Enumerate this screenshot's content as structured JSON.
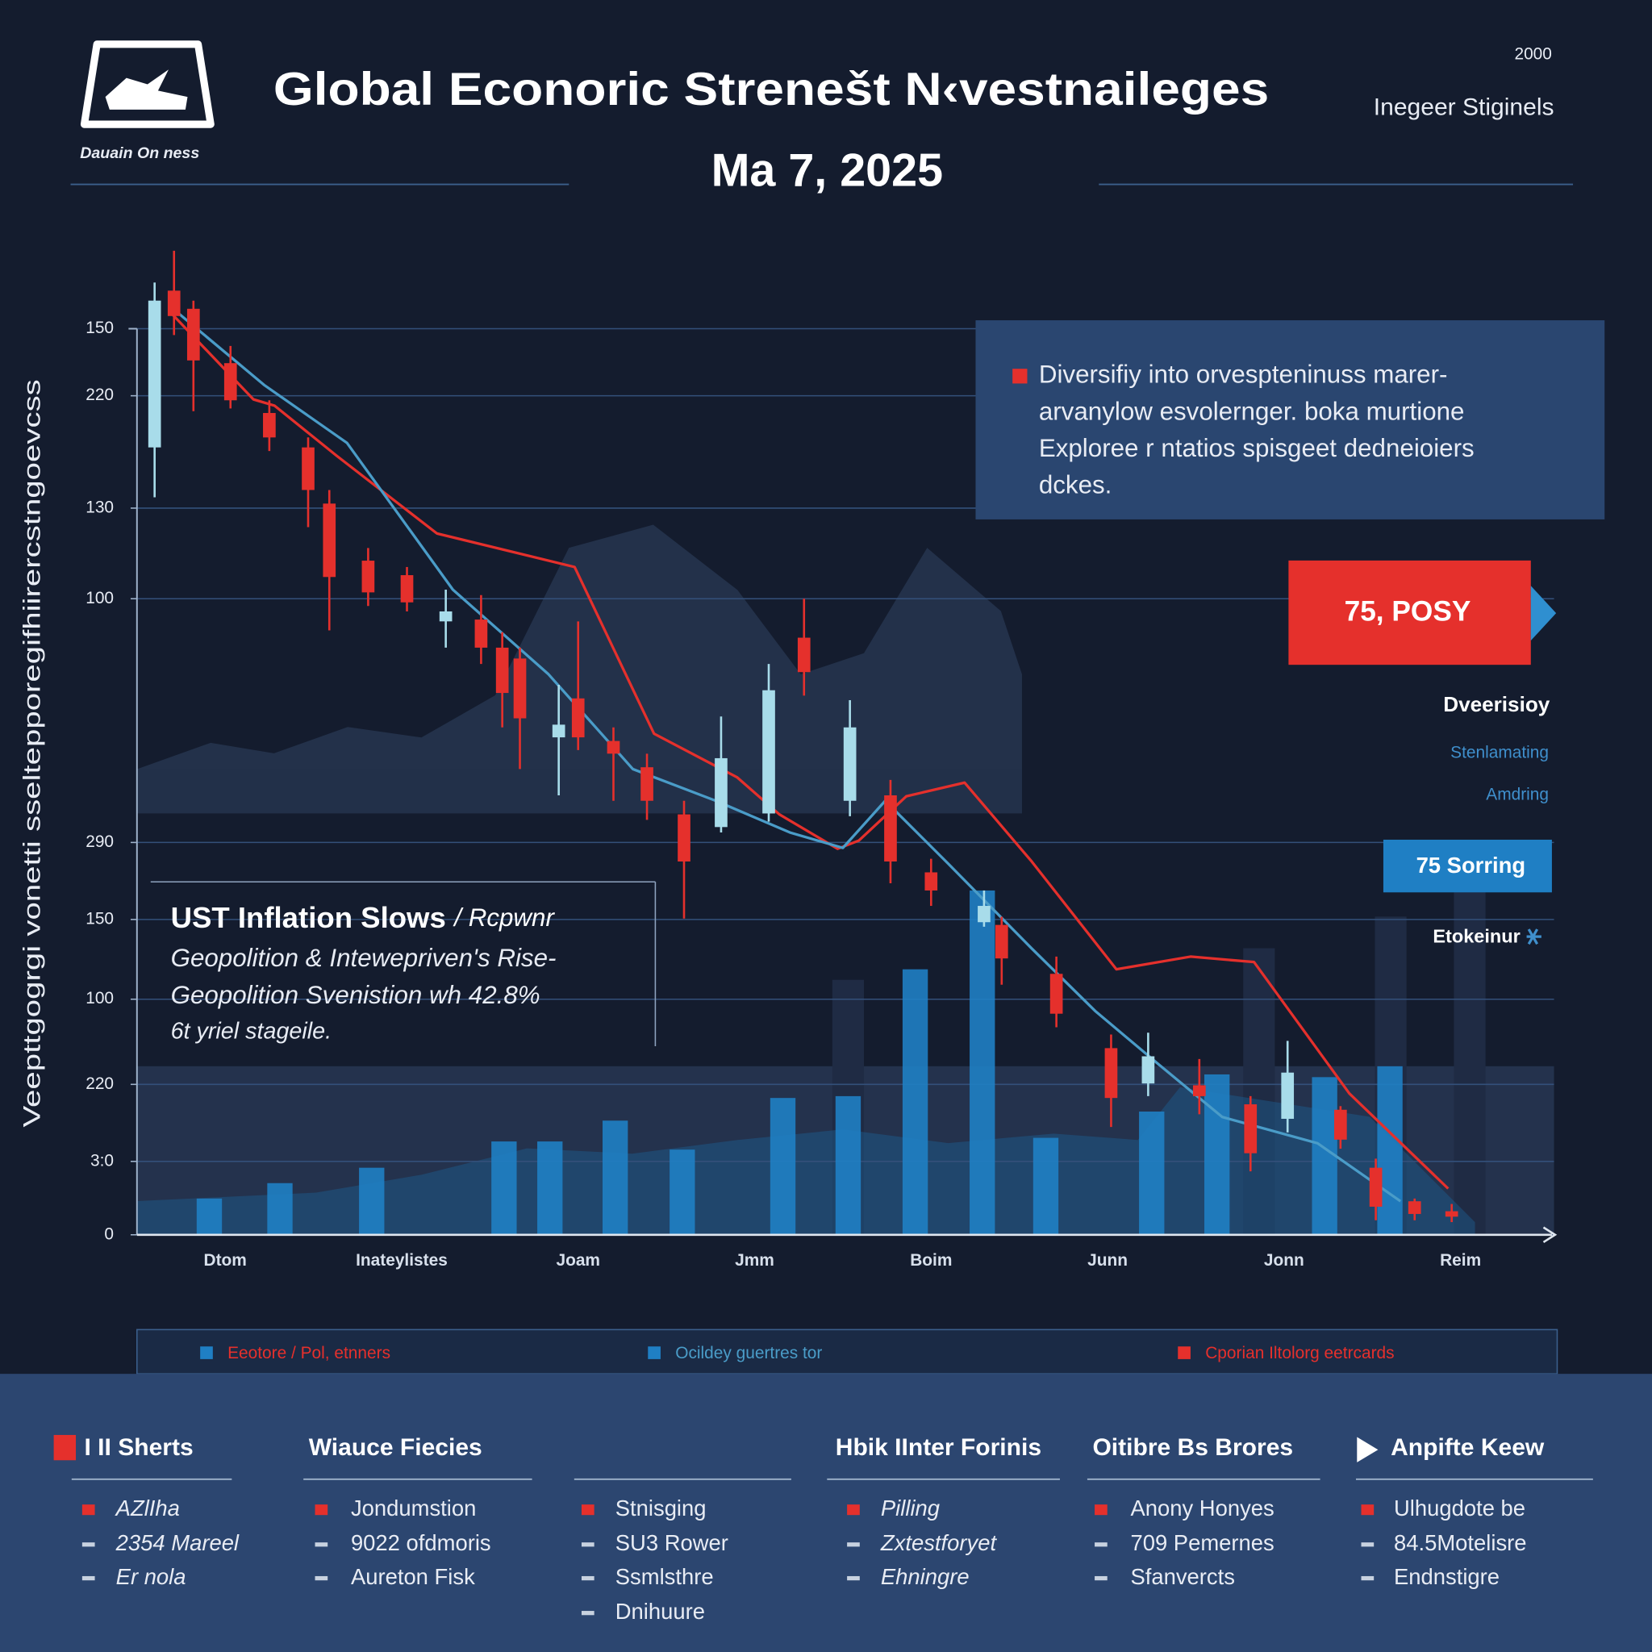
{
  "header": {
    "logo_text": "Dauain On ness",
    "title": "Global Econoric Strenešt N‹vestnaileges",
    "date": "Ma 7, 2025",
    "top_right_number": "2000",
    "top_right_label": "Inegeer Stiginels"
  },
  "chart_data": {
    "type": "candlestick",
    "y_label": "Veepttgogrgi vonetti sseltepporegifhiirercstngoevcss",
    "categories": [
      "Dtom",
      "Inateylistes",
      "Joam",
      "Jmm",
      "Boim",
      "Junn",
      "Jonn",
      "Reim"
    ],
    "xlim": [
      0,
      8
    ],
    "ylim": [
      0,
      110
    ],
    "yticks": [
      {
        "value": 100,
        "label": "150"
      },
      {
        "value": 92.6,
        "label": "220"
      },
      {
        "value": 80.2,
        "label": "130"
      },
      {
        "value": 70.2,
        "label": "100"
      },
      {
        "value": 43.3,
        "label": "290"
      },
      {
        "value": 34.8,
        "label": "150"
      },
      {
        "value": 26.0,
        "label": "100"
      },
      {
        "value": 16.6,
        "label": "220"
      },
      {
        "value": 8.1,
        "label": "3:0"
      },
      0
    ],
    "grid": true,
    "candles": {
      "up_color": "#a8dcea",
      "down_color": "#e5302c",
      "x": [
        0.1,
        0.21,
        0.32,
        0.53,
        0.75,
        0.97,
        1.09,
        1.31,
        1.53,
        1.75,
        1.95,
        2.07,
        2.17,
        2.39,
        2.5,
        2.7,
        2.89,
        3.1,
        3.31,
        3.58,
        3.78,
        4.04,
        4.27,
        4.5,
        4.8,
        4.9,
        5.21,
        5.52,
        5.73,
        6.02,
        6.31,
        6.52,
        6.82,
        7.02,
        7.24,
        7.45
      ],
      "open": [
        86.9,
        104.2,
        102.2,
        96.2,
        90.7,
        86.9,
        80.7,
        74.4,
        72.8,
        67.7,
        67.9,
        64.8,
        63.6,
        54.9,
        59.2,
        54.5,
        51.6,
        46.4,
        45.0,
        46.5,
        65.9,
        47.9,
        48.5,
        40.0,
        34.5,
        34.2,
        28.8,
        20.6,
        16.7,
        16.5,
        14.4,
        12.8,
        13.8,
        7.4,
        3.7,
        2.6
      ],
      "high": [
        105.1,
        108.6,
        103.1,
        98.1,
        92.1,
        88.0,
        82.2,
        75.8,
        73.7,
        71.2,
        70.6,
        66.5,
        64.8,
        60.7,
        67.7,
        56.0,
        53.1,
        47.9,
        57.2,
        63.0,
        70.2,
        59.0,
        50.2,
        41.5,
        38.0,
        35.1,
        30.7,
        22.1,
        22.3,
        19.4,
        15.3,
        21.4,
        14.2,
        8.4,
        4.0,
        3.4
      ],
      "low": [
        81.4,
        99.3,
        90.9,
        91.2,
        86.5,
        78.1,
        66.7,
        69.4,
        68.8,
        64.8,
        63.0,
        56.0,
        51.4,
        48.5,
        53.5,
        47.9,
        45.8,
        34.9,
        44.4,
        45.6,
        59.5,
        46.2,
        38.8,
        36.3,
        34.0,
        27.6,
        22.9,
        11.9,
        15.3,
        13.3,
        7.0,
        11.3,
        9.5,
        1.6,
        1.6,
        1.4
      ],
      "close": [
        103.1,
        101.4,
        96.5,
        92.1,
        88.0,
        82.2,
        72.6,
        70.9,
        69.8,
        68.8,
        64.8,
        59.8,
        57.0,
        56.3,
        54.9,
        53.1,
        47.9,
        41.2,
        52.6,
        60.1,
        62.1,
        56.0,
        41.2,
        38.0,
        36.3,
        30.5,
        24.4,
        15.1,
        19.7,
        15.3,
        9.0,
        17.9,
        10.5,
        3.1,
        2.3,
        2.0
      ]
    },
    "lines": [
      {
        "color": "#e5302c",
        "x": [
          0.18,
          0.66,
          0.78,
          1.13,
          1.7,
          2.48,
          2.93,
          3.4,
          3.64,
          3.97,
          4.09,
          4.36,
          4.69,
          5.07,
          5.55,
          5.97,
          6.33,
          6.87,
          7.43
        ],
        "values": [
          102.0,
          92.2,
          91.5,
          86.0,
          77.4,
          73.7,
          55.3,
          50.5,
          46.4,
          42.6,
          43.5,
          48.4,
          49.9,
          41.2,
          29.3,
          30.7,
          30.1,
          15.6,
          5.1
        ]
      },
      {
        "color": "#4a9cc8",
        "x": [
          0.18,
          0.72,
          1.19,
          1.79,
          2.33,
          2.81,
          3.28,
          3.7,
          4.0,
          4.24,
          4.6,
          5.07,
          5.43,
          5.79,
          6.15,
          6.69,
          7.16
        ],
        "values": [
          102.6,
          93.8,
          87.4,
          71.2,
          61.9,
          51.4,
          47.9,
          44.4,
          42.7,
          47.9,
          40.9,
          31.6,
          24.7,
          18.8,
          13.0,
          10.1,
          3.7
        ]
      }
    ],
    "bars": {
      "color": "#1f7fc4",
      "x": [
        0.41,
        0.81,
        1.33,
        2.08,
        2.34,
        2.71,
        3.09,
        3.66,
        4.03,
        4.41,
        4.79,
        5.15,
        5.75,
        6.12,
        6.73,
        7.1
      ],
      "values": [
        4.0,
        5.7,
        7.4,
        10.3,
        10.3,
        12.6,
        9.4,
        15.1,
        15.3,
        29.3,
        38.0,
        10.7,
        13.6,
        17.7,
        17.4,
        18.6
      ]
    },
    "legend": [
      {
        "text": "Eeotore / Pol, etnners",
        "color": "#e5302c",
        "marker_color": "#1f7fc4"
      },
      {
        "text": "Ocildey guertres tor",
        "color": "#4a9cc8",
        "marker_color": "#1f7fc4"
      },
      {
        "text": "Cporian Iltolorg eetrcards",
        "color": "#e5302c",
        "marker_color": "#e5302c"
      }
    ]
  },
  "callout": {
    "lines": [
      "Diversifiy  into orvespteninuss marer-",
      "arvanylow esvolernger. boka murtione",
      "Exploree r ntatios spisgeet dedneioiers",
      "dckes."
    ]
  },
  "side_panel": {
    "badge": "75, POSY",
    "heading": "Dveerisioy",
    "items": [
      "Stenlamating",
      "Amdring"
    ],
    "badge2": "75 Sorring",
    "note": "Etokeinur"
  },
  "annotation": {
    "heading": "UST Inflation Slows",
    "heading_suffix": "/ Rcpwnr",
    "lines": [
      "Geopolition & Intewepriven's Rise-",
      "Geopolition Svenistion wh 42.8%",
      "6t yriel stageile."
    ]
  },
  "footer": {
    "columns": [
      {
        "heading": "I II Sherts",
        "items": [
          "AZlIha",
          "2354 Mareel",
          "Er nola"
        ]
      },
      {
        "heading": "Wiauce Fiecies",
        "items": [
          "Jondumstion",
          "9022 ofdmoris",
          "Aureton Fisk"
        ]
      },
      {
        "items": [
          "Stnisging",
          "SU3 Rower",
          "Ssmlsthre",
          "Dnihuure"
        ]
      },
      {
        "heading": "Hbik IInter Forinis",
        "items": [
          "Pilling",
          "Zxtestforyet",
          "Ehningre"
        ]
      },
      {
        "heading": "Oitibre Bs Brores",
        "items": [
          "Anony Honyes",
          "709 Pemernes",
          "Sfanvercts"
        ]
      },
      {
        "heading": "Anpifte Keew",
        "items": [
          "Ulhugdote be",
          "84.5Motelisre",
          "Endnstigre"
        ]
      }
    ]
  }
}
